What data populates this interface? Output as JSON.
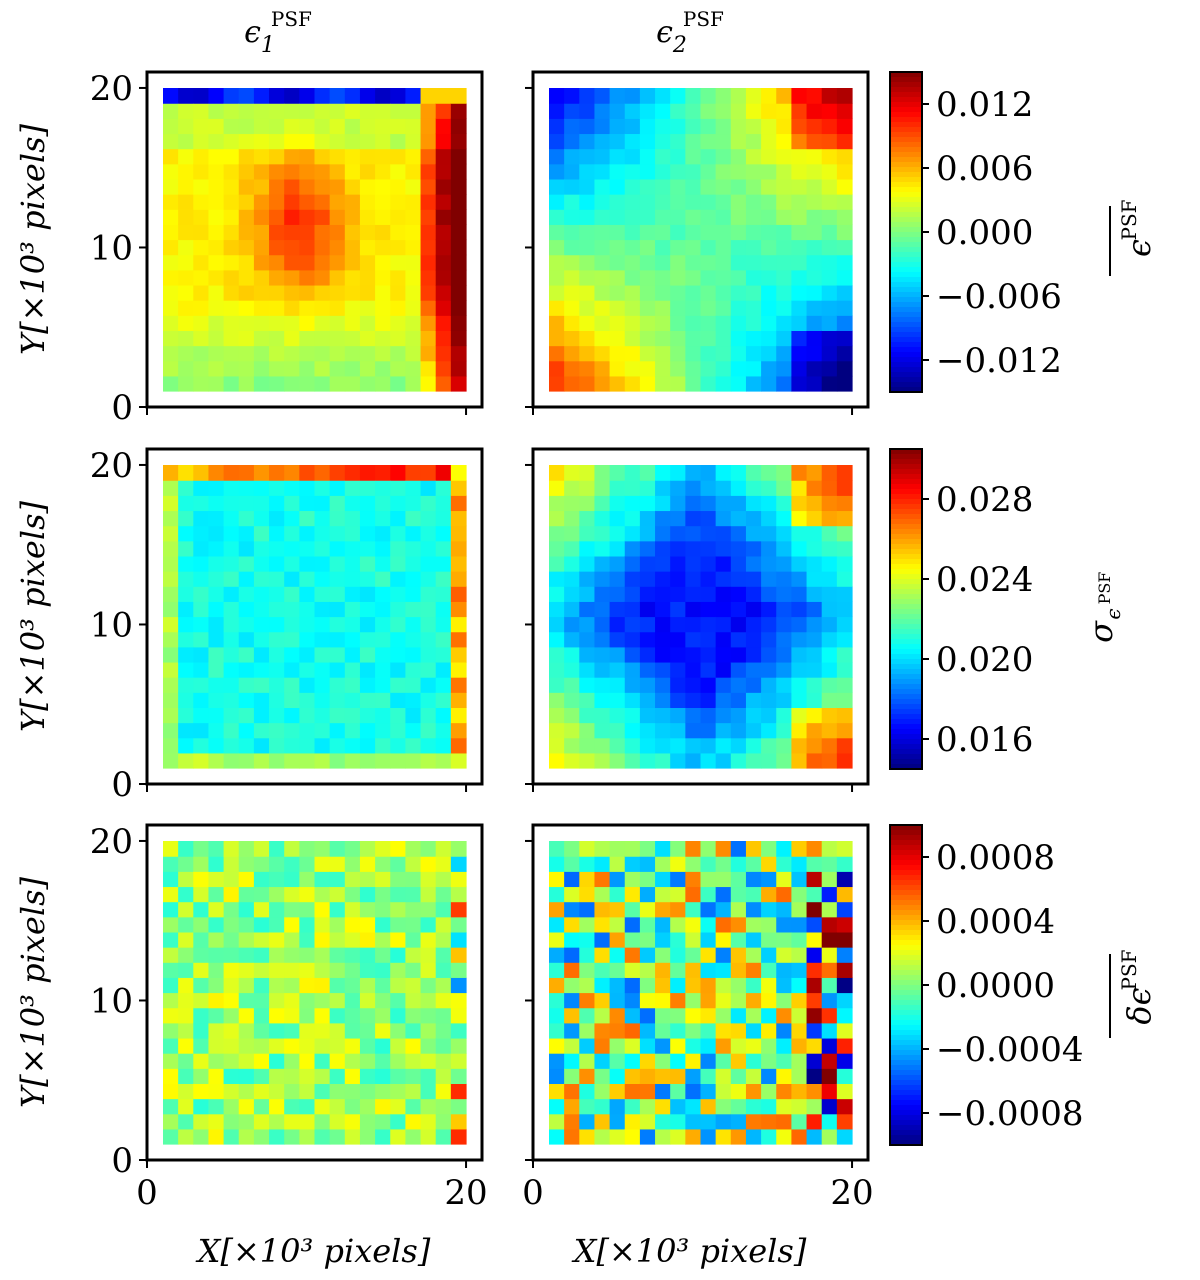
{
  "chart_data": [
    {
      "type": "heatmap",
      "title": "ϵ₁ᴾˢᶠ",
      "field": "mean_e1",
      "xlabel": "",
      "ylabel": "Y[×10³ pixels]",
      "xlim": [
        0,
        21
      ],
      "ylim": [
        0,
        21
      ],
      "xticks": [],
      "yticks": [
        "0",
        "10",
        "20"
      ],
      "grid_size": 20
    },
    {
      "type": "heatmap",
      "title": "ϵ₂ᴾˢᶠ",
      "field": "mean_e2",
      "xlabel": "",
      "ylabel": "",
      "xlim": [
        0,
        21
      ],
      "ylim": [
        0,
        21
      ],
      "xticks": [],
      "yticks": [],
      "grid_size": 20
    },
    {
      "type": "heatmap",
      "title": "",
      "field": "sigma_e1",
      "xlabel": "",
      "ylabel": "Y[×10³ pixels]",
      "xlim": [
        0,
        21
      ],
      "ylim": [
        0,
        21
      ],
      "xticks": [],
      "yticks": [
        "0",
        "10",
        "20"
      ],
      "grid_size": 20
    },
    {
      "type": "heatmap",
      "title": "",
      "field": "sigma_e2",
      "xlabel": "",
      "ylabel": "",
      "xlim": [
        0,
        21
      ],
      "ylim": [
        0,
        21
      ],
      "xticks": [],
      "yticks": [],
      "grid_size": 20
    },
    {
      "type": "heatmap",
      "title": "",
      "field": "resid_e1",
      "xlabel": "X[×10³ pixels]",
      "ylabel": "Y[×10³ pixels]",
      "xlim": [
        0,
        21
      ],
      "ylim": [
        0,
        21
      ],
      "xticks": [
        "0",
        "20"
      ],
      "yticks": [
        "0",
        "10",
        "20"
      ],
      "grid_size": 20
    },
    {
      "type": "heatmap",
      "title": "",
      "field": "resid_e2",
      "xlabel": "X[×10³ pixels]",
      "ylabel": "",
      "xlim": [
        0,
        21
      ],
      "ylim": [
        0,
        21
      ],
      "xticks": [
        "0",
        "20"
      ],
      "yticks": [],
      "grid_size": 20
    }
  ],
  "colorbars": [
    {
      "label": "ϵᴾˢᶠ (overlined)",
      "range": [
        -0.015,
        0.015
      ],
      "ticks": [
        {
          "v": 0.012,
          "t": "0.012"
        },
        {
          "v": 0.006,
          "t": "0.006"
        },
        {
          "v": 0.0,
          "t": "0.000"
        },
        {
          "v": -0.006,
          "t": "−0.006"
        },
        {
          "v": -0.012,
          "t": "−0.012"
        }
      ]
    },
    {
      "label": "σϵᴾˢᶠ",
      "range": [
        0.0145,
        0.0305
      ],
      "ticks": [
        {
          "v": 0.028,
          "t": "0.028"
        },
        {
          "v": 0.024,
          "t": "0.024"
        },
        {
          "v": 0.02,
          "t": "0.020"
        },
        {
          "v": 0.016,
          "t": "0.016"
        }
      ]
    },
    {
      "label": "δϵᴾˢᶠ (overlined)",
      "range": [
        -0.001,
        0.001
      ],
      "ticks": [
        {
          "v": 0.0008,
          "t": "0.0008"
        },
        {
          "v": 0.0004,
          "t": "0.0004"
        },
        {
          "v": 0.0,
          "t": "0.0000"
        },
        {
          "v": -0.0004,
          "t": "−0.0004"
        },
        {
          "v": -0.0008,
          "t": "−0.0008"
        }
      ]
    }
  ],
  "labels": {
    "col1_title_base": "ϵ",
    "col1_title_sub": "1",
    "col2_title_base": "ϵ",
    "col2_title_sub": "2",
    "title_sup": "PSF",
    "x_axis_label": "X[×10³ pixels]",
    "y_axis_label": "Y[×10³ pixels]",
    "cb1_label_main": "ϵ",
    "cb1_label_sup": "PSF",
    "cb2_label_main": "σ",
    "cb2_label_sub": "ϵ",
    "cb2_label_subsup": "PSF",
    "cb3_label_main": "δϵ",
    "cb3_label_sup": "PSF",
    "ytick_0": "0",
    "ytick_10": "10",
    "ytick_20": "20",
    "xtick_0": "0",
    "xtick_20": "20"
  },
  "colors": {
    "colormap": "jet",
    "frame": "#000000",
    "background": "#ffffff"
  }
}
